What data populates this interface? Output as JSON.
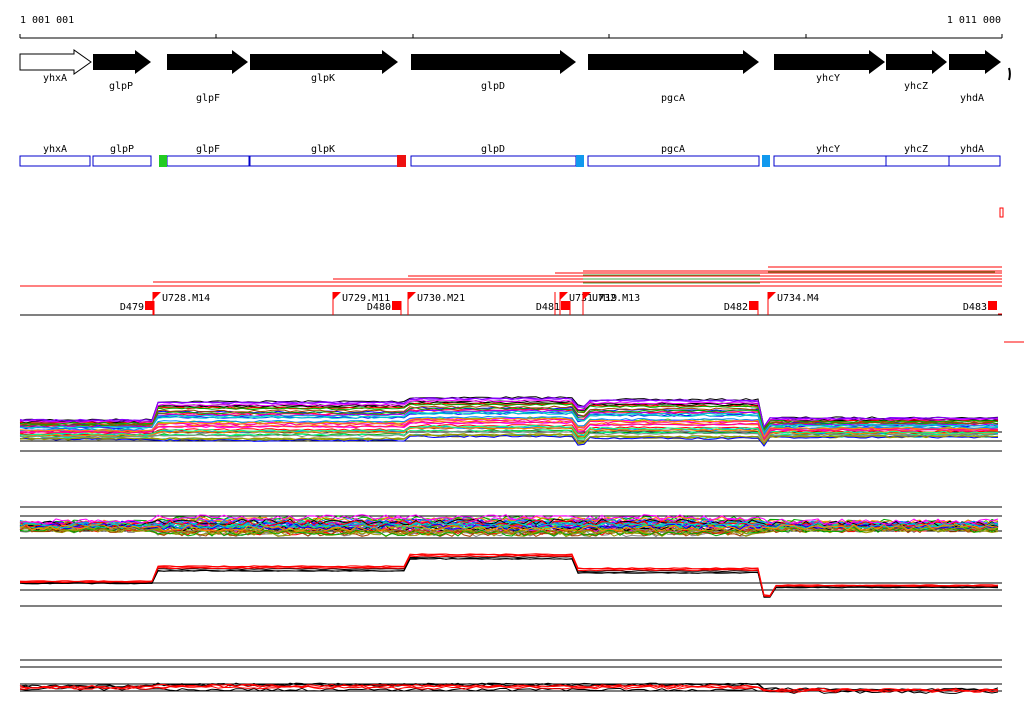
{
  "ruler": {
    "start_label": "1 001 001",
    "end_label": "1 011 000"
  },
  "genes": [
    {
      "name": "yhxA",
      "style": "outline"
    },
    {
      "name": "glpP",
      "style": "solid"
    },
    {
      "name": "glpF",
      "style": "solid"
    },
    {
      "name": "glpK",
      "style": "solid"
    },
    {
      "name": "glpD",
      "style": "solid"
    },
    {
      "name": "pgcA",
      "style": "solid"
    },
    {
      "name": "yhcY",
      "style": "solid"
    },
    {
      "name": "yhcZ",
      "style": "solid"
    },
    {
      "name": "yhdA",
      "style": "solid"
    }
  ],
  "segments": [
    "yhxA",
    "glpP",
    "glpF",
    "glpK",
    "glpD",
    "pgcA",
    "yhcY",
    "yhcZ",
    "yhdA"
  ],
  "segment_markers": [
    {
      "color": "#22cc22"
    },
    {
      "color": "#ee1111"
    },
    {
      "color": "#1199ee"
    },
    {
      "color": "#1199ee"
    }
  ],
  "features": [
    {
      "label": "U728.M14",
      "kind": "U"
    },
    {
      "label": "U729.M11",
      "kind": "U"
    },
    {
      "label": "U730.M21",
      "kind": "U"
    },
    {
      "label": "U731.M19",
      "kind": "U"
    },
    {
      "label": "U732.M13",
      "kind": "U"
    },
    {
      "label": "U734.M4",
      "kind": "U"
    },
    {
      "label": "D479",
      "kind": "D"
    },
    {
      "label": "D480",
      "kind": "D"
    },
    {
      "label": "D481",
      "kind": "D"
    },
    {
      "label": "D482",
      "kind": "D"
    },
    {
      "label": "D483",
      "kind": "D"
    }
  ],
  "colors": {
    "gene": "#000000",
    "segment_box": "#0000cc",
    "feature": "#ff0000",
    "trace_palette": [
      "#000000",
      "#ff0000",
      "#00aa00",
      "#0000ff",
      "#ff00ff",
      "#00cccc",
      "#999900",
      "#ff8800",
      "#8800ff",
      "#ff0088",
      "#00ff88",
      "#888888",
      "#aa4400",
      "#0088ff",
      "#66cc00"
    ]
  }
}
